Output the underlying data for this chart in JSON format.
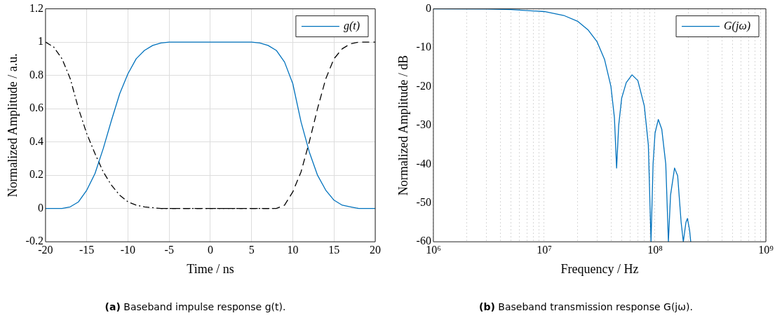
{
  "chart_data": [
    {
      "type": "line",
      "xlabel": "Time / ns",
      "ylabel": "Normalized Amplitude / a.u.",
      "xlim": [
        -20,
        20
      ],
      "xticks": [
        -20,
        -15,
        -10,
        -5,
        0,
        5,
        10,
        15,
        20
      ],
      "ylim": [
        -0.2,
        1.2
      ],
      "yticks": [
        -0.2,
        0,
        0.2,
        0.4,
        0.6,
        0.8,
        1,
        1.2
      ],
      "grid": true,
      "legend": "top right",
      "annotations": [
        "(a) Baseband impulse response g(t)."
      ],
      "series": [
        {
          "name": "g(t)",
          "color": "#0072bd",
          "line_style": "solid",
          "x": [
            -20,
            -18,
            -17,
            -16,
            -15,
            -14,
            -13,
            -12,
            -11,
            -10,
            -9,
            -8,
            -7,
            -6,
            -5,
            5,
            6,
            7,
            8,
            9,
            10,
            11,
            12,
            13,
            14,
            15,
            16,
            17,
            18,
            20
          ],
          "values": [
            0,
            0,
            0.01,
            0.04,
            0.11,
            0.21,
            0.36,
            0.53,
            0.69,
            0.81,
            0.9,
            0.95,
            0.98,
            0.995,
            1,
            1,
            0.995,
            0.98,
            0.95,
            0.88,
            0.75,
            0.52,
            0.34,
            0.2,
            0.11,
            0.05,
            0.02,
            0.01,
            0,
            0
          ]
        },
        {
          "color": "#000000",
          "line_style": "dashdot",
          "x": [
            -20,
            -19,
            -18,
            -17,
            -16,
            -15,
            -14,
            -13,
            -12,
            -11,
            -10,
            -9,
            -8,
            -6,
            8
          ],
          "values": [
            1,
            0.97,
            0.9,
            0.78,
            0.6,
            0.45,
            0.33,
            0.22,
            0.14,
            0.08,
            0.04,
            0.02,
            0.01,
            0,
            0
          ]
        },
        {
          "color": "#000000",
          "line_style": "dashed",
          "x": [
            -6,
            8,
            9,
            10,
            11,
            12,
            13,
            14,
            15,
            16,
            17,
            18,
            20
          ],
          "values": [
            0,
            0,
            0.02,
            0.1,
            0.22,
            0.4,
            0.6,
            0.78,
            0.9,
            0.96,
            0.99,
            1,
            1
          ]
        }
      ]
    },
    {
      "type": "line",
      "xlabel": "Frequency / Hz",
      "ylabel": "Normalized Amplitude / dB",
      "log": "x",
      "xlim": [
        1000000,
        1000000000
      ],
      "xticks": [
        {
          "value": 1000000,
          "label": "10⁶"
        },
        {
          "value": 2000000,
          "label": null
        },
        {
          "value": 3000000,
          "label": null
        },
        {
          "value": 4000000,
          "label": null
        },
        {
          "value": 5000000,
          "label": null
        },
        {
          "value": 6000000,
          "label": null
        },
        {
          "value": 7000000,
          "label": null
        },
        {
          "value": 8000000,
          "label": null
        },
        {
          "value": 9000000,
          "label": null
        },
        {
          "value": 10000000,
          "label": "10⁷"
        },
        {
          "value": 20000000,
          "label": null
        },
        {
          "value": 30000000,
          "label": null
        },
        {
          "value": 40000000,
          "label": null
        },
        {
          "value": 50000000,
          "label": null
        },
        {
          "value": 60000000,
          "label": null
        },
        {
          "value": 70000000,
          "label": null
        },
        {
          "value": 80000000,
          "label": null
        },
        {
          "value": 90000000,
          "label": null
        },
        {
          "value": 100000000,
          "label": "10⁸"
        },
        {
          "value": 200000000,
          "label": null
        },
        {
          "value": 300000000,
          "label": null
        },
        {
          "value": 400000000,
          "label": null
        },
        {
          "value": 500000000,
          "label": null
        },
        {
          "value": 600000000,
          "label": null
        },
        {
          "value": 700000000,
          "label": null
        },
        {
          "value": 800000000,
          "label": null
        },
        {
          "value": 900000000,
          "label": null
        },
        {
          "value": 1000000000,
          "label": "10⁹"
        }
      ],
      "ylim": [
        -60,
        0
      ],
      "yticks": [
        -60,
        -50,
        -40,
        -30,
        -20,
        -10,
        0
      ],
      "grid": "x",
      "legend": "top right",
      "annotations": [
        "(b) Baseband transmission response G(jω)."
      ],
      "series": [
        {
          "name": "G(jω)",
          "color": "#0072bd",
          "line_style": "solid",
          "x": [
            1000000,
            3000000,
            5000000,
            10000000,
            15000000,
            20000000,
            25000000,
            30000000,
            35000000,
            40000000,
            43000000,
            45000000,
            47000000,
            50000000,
            55000000,
            62000000,
            70000000,
            80000000,
            87000000,
            92000000,
            96000000,
            100000000,
            107000000,
            115000000,
            125000000,
            132000000,
            138000000,
            150000000,
            160000000,
            172000000,
            180000000,
            190000000,
            196000000,
            205000000,
            210000000
          ],
          "values": [
            0,
            -0.05,
            -0.2,
            -0.7,
            -1.7,
            -3.2,
            -5.5,
            -8.5,
            -13,
            -20,
            -28,
            -41,
            -30,
            -23,
            -19,
            -17,
            -18.5,
            -25,
            -35,
            -60,
            -40,
            -32,
            -28.5,
            -31,
            -40,
            -60,
            -48,
            -41,
            -43,
            -55,
            -60,
            -55,
            -54,
            -57,
            -60
          ]
        }
      ]
    }
  ]
}
